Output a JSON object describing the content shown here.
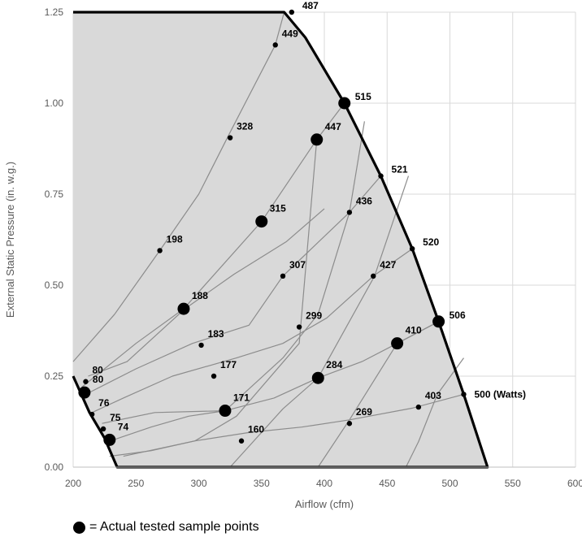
{
  "chart_data": {
    "type": "scatter",
    "xlabel": "Airflow (cfm)",
    "ylabel": "External Static Pressure (in. w.g.)",
    "xlim": [
      200,
      600
    ],
    "ylim": [
      0,
      1.25
    ],
    "x_ticks": [
      "200",
      "250",
      "300",
      "350",
      "400",
      "450",
      "500",
      "550",
      "600"
    ],
    "y_ticks": [
      "0.00",
      "0.25",
      "0.50",
      "0.75",
      "1.00",
      "1.25"
    ],
    "grid": true,
    "colors": {
      "fill": "#d9d9d9",
      "grid": "#d9d9d9",
      "curve": "#8c8c8c",
      "boundary": "#000000",
      "point": "#000000"
    },
    "boundary": [
      {
        "x": 200,
        "y": 0.25
      },
      {
        "x": 213,
        "y": 0.15
      },
      {
        "x": 225,
        "y": 0.08
      },
      {
        "x": 235,
        "y": 0.0
      },
      {
        "x": 530,
        "y": 0.0
      },
      {
        "x": 511,
        "y": 0.2
      },
      {
        "x": 491,
        "y": 0.4
      },
      {
        "x": 470,
        "y": 0.6
      },
      {
        "x": 445,
        "y": 0.8
      },
      {
        "x": 416,
        "y": 1.0
      },
      {
        "x": 385,
        "y": 1.18
      },
      {
        "x": 368,
        "y": 1.25
      },
      {
        "x": 200,
        "y": 1.25
      }
    ],
    "constant_pressure_curves": [
      [
        {
          "x": 229,
          "y": 0.03
        },
        {
          "x": 262,
          "y": 0.045
        },
        {
          "x": 297,
          "y": 0.072
        },
        {
          "x": 340,
          "y": 0.095
        },
        {
          "x": 382,
          "y": 0.11
        },
        {
          "x": 420,
          "y": 0.13
        },
        {
          "x": 470,
          "y": 0.162
        },
        {
          "x": 511,
          "y": 0.2
        }
      ],
      [
        {
          "x": 228,
          "y": 0.07
        },
        {
          "x": 262,
          "y": 0.11
        },
        {
          "x": 292,
          "y": 0.14
        },
        {
          "x": 321,
          "y": 0.155
        },
        {
          "x": 360,
          "y": 0.19
        },
        {
          "x": 395,
          "y": 0.245
        },
        {
          "x": 430,
          "y": 0.29
        },
        {
          "x": 458,
          "y": 0.34
        },
        {
          "x": 491,
          "y": 0.4
        }
      ],
      [
        {
          "x": 215,
          "y": 0.15
        },
        {
          "x": 240,
          "y": 0.19
        },
        {
          "x": 279,
          "y": 0.25
        },
        {
          "x": 330,
          "y": 0.3
        },
        {
          "x": 367,
          "y": 0.34
        },
        {
          "x": 402,
          "y": 0.41
        },
        {
          "x": 439,
          "y": 0.525
        },
        {
          "x": 470,
          "y": 0.6
        }
      ],
      [
        {
          "x": 210,
          "y": 0.2
        },
        {
          "x": 250,
          "y": 0.27
        },
        {
          "x": 295,
          "y": 0.34
        },
        {
          "x": 340,
          "y": 0.39
        },
        {
          "x": 367,
          "y": 0.525
        },
        {
          "x": 420,
          "y": 0.7
        },
        {
          "x": 445,
          "y": 0.8
        }
      ],
      [
        {
          "x": 207,
          "y": 0.22
        },
        {
          "x": 250,
          "y": 0.34
        },
        {
          "x": 288,
          "y": 0.435
        },
        {
          "x": 350,
          "y": 0.675
        },
        {
          "x": 394,
          "y": 0.9
        },
        {
          "x": 416,
          "y": 1.0
        }
      ],
      [
        {
          "x": 200,
          "y": 0.29
        },
        {
          "x": 233,
          "y": 0.42
        },
        {
          "x": 269,
          "y": 0.595
        },
        {
          "x": 300,
          "y": 0.75
        },
        {
          "x": 325,
          "y": 0.92
        },
        {
          "x": 361,
          "y": 1.16
        },
        {
          "x": 368,
          "y": 1.25
        }
      ]
    ],
    "constant_power_curves": [
      [
        {
          "x": 212,
          "y": 0.25
        },
        {
          "x": 243,
          "y": 0.29
        },
        {
          "x": 289,
          "y": 0.435
        },
        {
          "x": 328,
          "y": 0.53
        },
        {
          "x": 370,
          "y": 0.62
        },
        {
          "x": 400,
          "y": 0.71
        }
      ],
      [
        {
          "x": 223,
          "y": 0.12
        },
        {
          "x": 265,
          "y": 0.15
        },
        {
          "x": 321,
          "y": 0.155
        },
        {
          "x": 367,
          "y": 0.3
        },
        {
          "x": 395,
          "y": 0.42
        },
        {
          "x": 420,
          "y": 0.7
        },
        {
          "x": 432,
          "y": 0.95
        }
      ],
      [
        {
          "x": 240,
          "y": 0.03
        },
        {
          "x": 297,
          "y": 0.072
        },
        {
          "x": 330,
          "y": 0.14
        },
        {
          "x": 380,
          "y": 0.34
        },
        {
          "x": 394,
          "y": 0.9
        }
      ],
      [
        {
          "x": 325,
          "y": 0.0
        },
        {
          "x": 367,
          "y": 0.16
        },
        {
          "x": 395,
          "y": 0.245
        },
        {
          "x": 440,
          "y": 0.525
        },
        {
          "x": 467,
          "y": 0.8
        }
      ],
      [
        {
          "x": 395,
          "y": 0.0
        },
        {
          "x": 420,
          "y": 0.13
        },
        {
          "x": 458,
          "y": 0.34
        },
        {
          "x": 491,
          "y": 0.4
        }
      ],
      [
        {
          "x": 465,
          "y": 0.0
        },
        {
          "x": 475,
          "y": 0.07
        },
        {
          "x": 490,
          "y": 0.2
        },
        {
          "x": 511,
          "y": 0.3
        }
      ]
    ],
    "points": [
      {
        "x": 361,
        "y": 1.16,
        "label": "449",
        "tested": false
      },
      {
        "x": 374,
        "y": 1.25,
        "label": "487",
        "tested": false
      },
      {
        "x": 416,
        "y": 1.0,
        "label": "515",
        "tested": true
      },
      {
        "x": 394,
        "y": 0.9,
        "label": "447",
        "tested": true
      },
      {
        "x": 325,
        "y": 0.905,
        "label": "328",
        "tested": false
      },
      {
        "x": 445,
        "y": 0.8,
        "label": "521",
        "tested": false
      },
      {
        "x": 420,
        "y": 0.7,
        "label": "436",
        "tested": false
      },
      {
        "x": 350,
        "y": 0.675,
        "label": "315",
        "tested": true
      },
      {
        "x": 470,
        "y": 0.6,
        "label": "520",
        "tested": false
      },
      {
        "x": 269,
        "y": 0.595,
        "label": "198",
        "tested": false
      },
      {
        "x": 367,
        "y": 0.525,
        "label": "307",
        "tested": false
      },
      {
        "x": 439,
        "y": 0.525,
        "label": "427",
        "tested": false
      },
      {
        "x": 288,
        "y": 0.435,
        "label": "188",
        "tested": true
      },
      {
        "x": 380,
        "y": 0.385,
        "label": "299",
        "tested": false
      },
      {
        "x": 491,
        "y": 0.4,
        "label": "506",
        "tested": true
      },
      {
        "x": 458,
        "y": 0.34,
        "label": "410",
        "tested": true
      },
      {
        "x": 302,
        "y": 0.335,
        "label": "183",
        "tested": false
      },
      {
        "x": 312,
        "y": 0.25,
        "label": "177",
        "tested": false
      },
      {
        "x": 395,
        "y": 0.245,
        "label": "284",
        "tested": true
      },
      {
        "x": 209,
        "y": 0.205,
        "label": "80",
        "tested": true
      },
      {
        "x": 210,
        "y": 0.235,
        "label": "80",
        "tested": false
      },
      {
        "x": 511,
        "y": 0.2,
        "label": "500 (Watts)",
        "tested": false
      },
      {
        "x": 475,
        "y": 0.165,
        "label": "403",
        "tested": false
      },
      {
        "x": 321,
        "y": 0.155,
        "label": "171",
        "tested": true
      },
      {
        "x": 215,
        "y": 0.145,
        "label": "76",
        "tested": false
      },
      {
        "x": 420,
        "y": 0.12,
        "label": "269",
        "tested": false
      },
      {
        "x": 224,
        "y": 0.105,
        "label": "75",
        "tested": false
      },
      {
        "x": 229,
        "y": 0.075,
        "label": "74",
        "tested": true
      },
      {
        "x": 334,
        "y": 0.072,
        "label": "160",
        "tested": false
      }
    ],
    "legend": {
      "text": "= Actual tested sample points"
    }
  }
}
